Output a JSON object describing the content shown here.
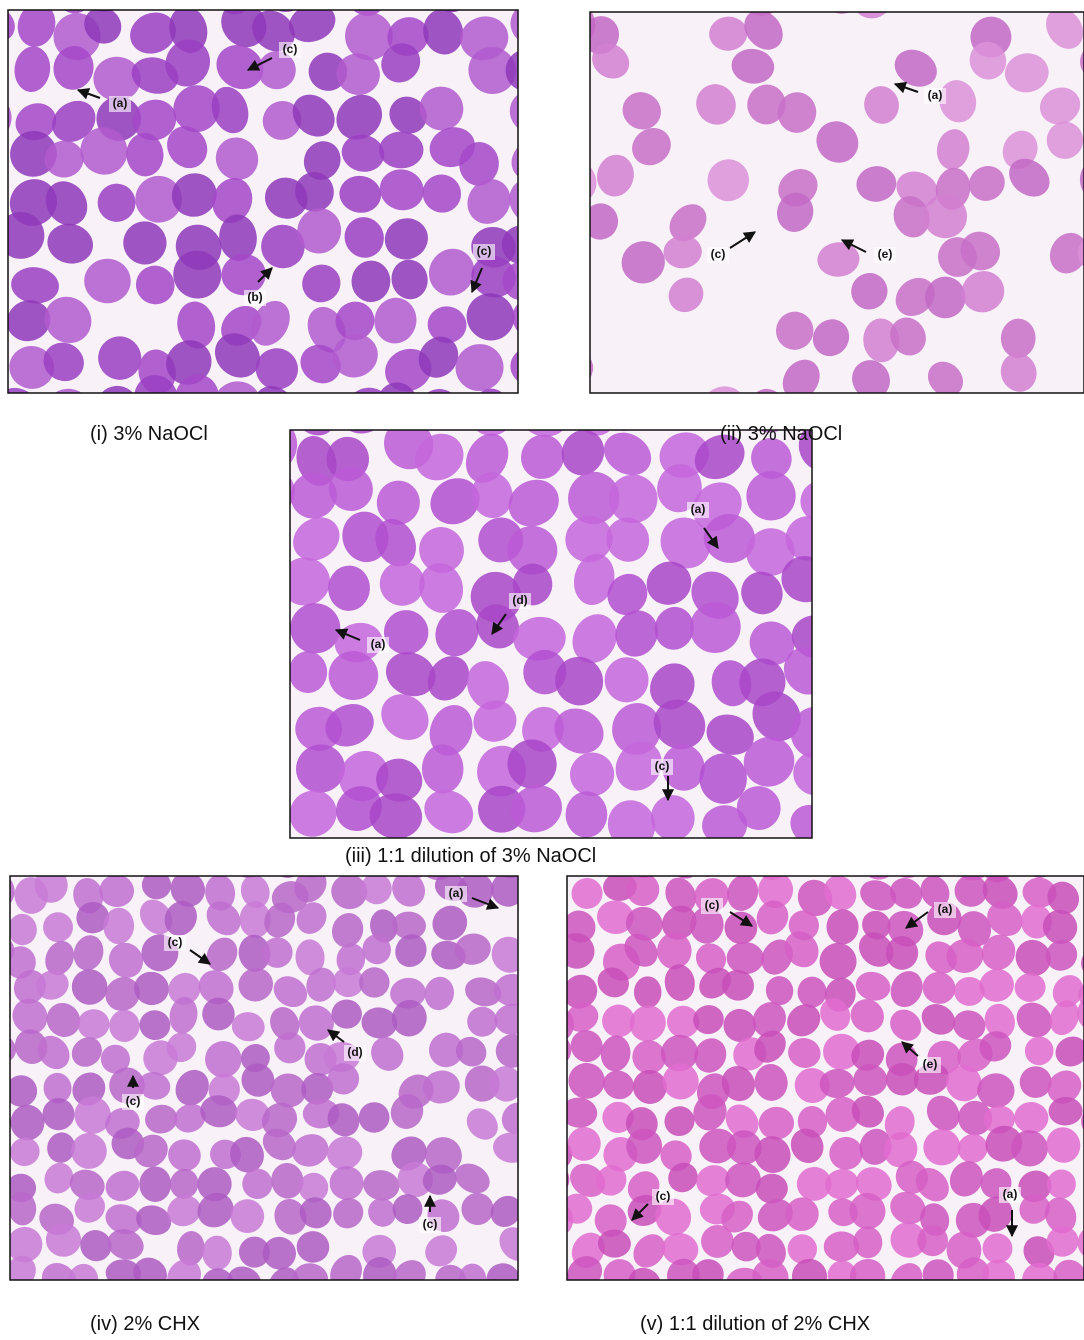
{
  "panels": [
    {
      "caption": "(i) 3% NaOCl",
      "labels": [
        "(a)",
        "(c)",
        "(b)",
        "(c)"
      ]
    },
    {
      "caption": "(ii) 3% NaOCl",
      "labels": [
        "(a)",
        "(c)",
        "(e)"
      ]
    },
    {
      "caption": "(iii) 1:1 dilution of 3% NaOCl",
      "labels": [
        "(a)",
        "(d)",
        "(a)",
        "(c)"
      ]
    },
    {
      "caption": "(iv) 2% CHX",
      "labels": [
        "(a)",
        "(c)",
        "(d)",
        "(c)",
        "(c)"
      ]
    },
    {
      "caption": "(v) 1:1 dilution of 2% CHX",
      "labels": [
        "(c)",
        "(a)",
        "(e)",
        "(c)",
        "(a)"
      ]
    }
  ]
}
